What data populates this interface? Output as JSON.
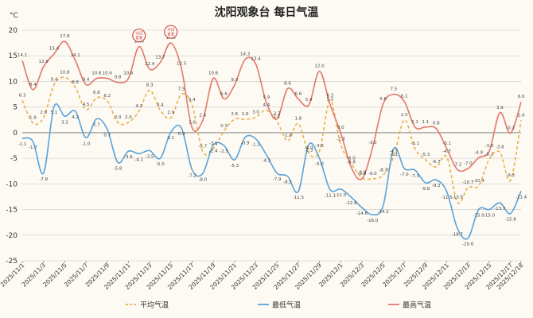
{
  "chart_data": {
    "type": "line",
    "title": "沈阳观象台 每日气温",
    "y_unit": "°C",
    "ylim": [
      -25,
      20
    ],
    "yticks": [
      20,
      15,
      10,
      5,
      0,
      -5,
      -10,
      -15,
      -20,
      -25
    ],
    "grid": true,
    "legend_position": "bottom",
    "x": [
      "2025/11/1",
      "2025/11/2",
      "2025/11/3",
      "2025/11/4",
      "2025/11/5",
      "2025/11/6",
      "2025/11/7",
      "2025/11/8",
      "2025/11/9",
      "2025/11/10",
      "2025/11/11",
      "2025/11/12",
      "2025/11/13",
      "2025/11/14",
      "2025/11/15",
      "2025/11/16",
      "2025/11/17",
      "2025/11/18",
      "2025/11/19",
      "2025/11/20",
      "2025/11/21",
      "2025/11/22",
      "2025/11/23",
      "2025/11/24",
      "2025/11/25",
      "2025/11/26",
      "2025/11/27",
      "2025/11/28",
      "2025/11/29",
      "2025/11/30",
      "2025/12/1",
      "2025/12/2",
      "2025/12/3",
      "2025/12/4",
      "2025/12/5",
      "2025/12/6",
      "2025/12/7",
      "2025/12/8",
      "2025/12/9",
      "2025/12/10",
      "2025/12/11",
      "2025/12/12",
      "2025/12/13",
      "2025/12/14",
      "2025/12/15",
      "2025/12/16",
      "2025/12/17",
      "2025/12/18"
    ],
    "xtick_labels": [
      "2025/11/1",
      "2025/11/3",
      "2025/11/5",
      "2025/11/7",
      "2025/11/9",
      "2025/11/11",
      "2025/11/13",
      "2025/11/15",
      "2025/11/17",
      "2025/11/19",
      "2025/11/21",
      "2025/11/23",
      "2025/11/25",
      "2025/11/27",
      "2025/11/29",
      "2025/12/1",
      "2025/12/3",
      "2025/12/5",
      "2025/12/7",
      "2025/12/9",
      "2025/12/11",
      "2025/12/13",
      "2025/12/15",
      "2025/12/17",
      "2025/12/18"
    ],
    "series": [
      {
        "name": "平均气温",
        "color": "#e8b04a",
        "style": "dashed",
        "values": [
          6.3,
          1.9,
          2.9,
          9.4,
          10.8,
          8.8,
          4.5,
          6.8,
          6.2,
          2.0,
          2.0,
          4.2,
          8.3,
          4.4,
          2.9,
          7.5,
          5.4,
          -3.7,
          -3.1,
          0.3,
          2.6,
          2.6,
          3.0,
          4.4,
          2.2,
          -1.6,
          1.8,
          -4.0,
          -3.6,
          6.3,
          -2.3,
          -6.0,
          -8.8,
          -9.0,
          -8.3,
          -4.7,
          2.5,
          -3.1,
          -5.3,
          -6.7,
          -4.7,
          -13.6,
          -10.7,
          -10.4,
          -5.2,
          -3.8,
          -9.3,
          2.4
        ]
      },
      {
        "name": "最低气温",
        "color": "#5ba3d9",
        "style": "solid",
        "values": [
          -1.1,
          -1.7,
          -7.9,
          5.1,
          3.2,
          4.2,
          -1.0,
          2.7,
          0.7,
          -5.8,
          -3.6,
          -4.1,
          -3.5,
          -5.0,
          0.1,
          0.9,
          -7.2,
          -8.0,
          -2.4,
          -2.5,
          -5.3,
          -0.9,
          -1.2,
          -4.3,
          -7.9,
          -8.5,
          -11.5,
          -2.3,
          -5.0,
          -11.1,
          -11.0,
          -12.6,
          -14.6,
          -16.0,
          -14.3,
          -3.1,
          -7.0,
          -7.3,
          -9.8,
          -9.2,
          -11.5,
          -18.7,
          -20.6,
          -15.0,
          -15.0,
          -13.7,
          -15.8,
          -11.4
        ]
      },
      {
        "name": "最高气温",
        "color": "#e2786b",
        "style": "solid",
        "values": [
          14.1,
          8.4,
          12.9,
          15.4,
          17.8,
          14.1,
          9.4,
          10.6,
          10.6,
          9.8,
          10.6,
          16.8,
          12.4,
          13.7,
          17.5,
          12.5,
          1.0,
          2.4,
          10.6,
          6.6,
          9.3,
          14.3,
          13.4,
          5.9,
          2.7,
          8.6,
          6.6,
          5.4,
          12.0,
          5.5,
          0.0,
          -6.8,
          -9.0,
          -3.0,
          5.6,
          7.5,
          6.1,
          1.1,
          1.1,
          0.8,
          -3.1,
          -7.2,
          -7.0,
          -4.9,
          -3.6,
          3.9,
          -0.1,
          6.0
        ]
      }
    ],
    "mean_labels": [
      "6.3",
      "1.9",
      "2.9",
      "9.4",
      "10.8",
      "8.8",
      "4.5",
      "6.8",
      "6.2",
      "2.0",
      "2.0",
      "4.2",
      "8.3",
      "4.4",
      "2.9",
      "7.5",
      "5.4",
      "-3.7",
      "-3.1",
      "0.3",
      "2.6",
      "2.6",
      "3.0",
      "4.4",
      "2.2",
      "-1.6",
      "1.8",
      "-4.0",
      "-3.6",
      "6.3",
      "-2.3",
      "-6.0",
      "-8.8",
      "-9.0",
      "-8.3",
      "-4.7",
      "2.5",
      "-3.1",
      "-5.3",
      "-6.7",
      "-4.7",
      "-13.6",
      "-10.7",
      "-10.4",
      "-5.2",
      "-3.8",
      "-9.3",
      "2.4"
    ],
    "min_labels": [
      "-1.1",
      "-1.7",
      "-7.9",
      "5.1",
      "3.2",
      "4.2",
      "-1.0",
      "2.7",
      "0.7",
      "-5.8",
      "-3.6",
      "-4.1",
      "-3.5",
      "-5.0",
      "0.1",
      "0.9",
      "-7.2",
      "-8.0",
      "-2.4",
      "-2.5",
      "-5.3",
      "-0.9",
      "-1.2",
      "-4.3",
      "-7.9",
      "-8.5",
      "-11.5",
      "-2.3",
      "-5.0",
      "-11.1",
      "-11.0",
      "-12.6",
      "-14.6",
      "-16.0",
      "-14.3",
      "-3.1",
      "-7.0",
      "-7.3",
      "-9.8",
      "-9.2",
      "-11.5",
      "-18.7",
      "-20.6",
      "-15.0",
      "-15.0",
      "-13.7",
      "-15.8",
      "-11.4"
    ],
    "max_labels": [
      "14.1",
      "8.4",
      "12.9",
      "15.4",
      "17.8",
      "14.1",
      "9.4",
      "10.6",
      "10.6",
      "9.8",
      "10.6",
      "16.8",
      "12.4",
      "13.7",
      "17.5",
      "12.5",
      "1.0",
      "2.4",
      "10.6",
      "6.6",
      "9.3",
      "14.3",
      "13.4",
      "5.9",
      "2.7",
      "8.6",
      "6.6",
      "5.4",
      "12.0",
      "5.5",
      "0.0",
      "-6.8",
      "-9.0",
      "-3.0",
      "5.6",
      "7.5",
      "6.1",
      "1.1",
      "1.1",
      "0.8",
      "-3.1",
      "-7.2",
      "-7.0",
      "-4.9",
      "-3.6",
      "3.9",
      "-0.1",
      "6.0"
    ],
    "stamps": [
      {
        "index": 11,
        "text": "今日首发"
      },
      {
        "index": 14,
        "text": "今日首发"
      }
    ]
  }
}
